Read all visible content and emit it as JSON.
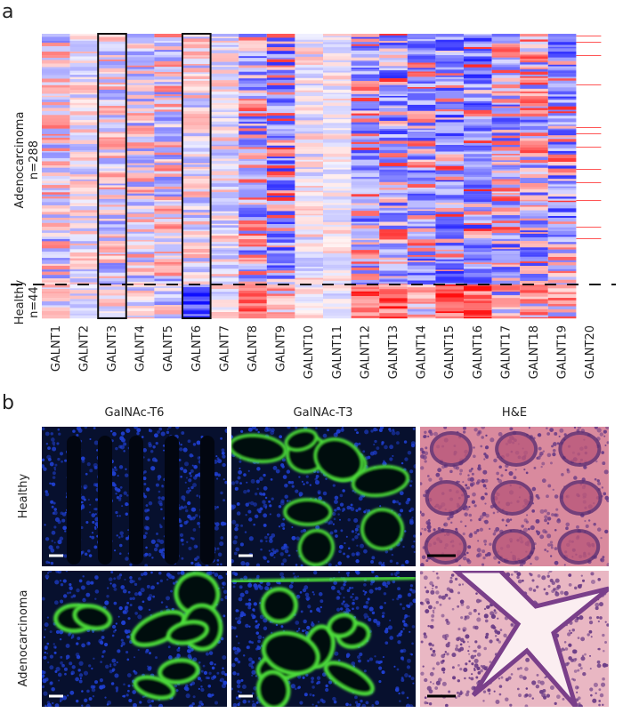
{
  "panel_a": {
    "label": "a",
    "row_labels": [
      {
        "group": "Adenocarcinoma",
        "n": "n=288"
      },
      {
        "group": "Healthy",
        "n": "n=44"
      }
    ],
    "columns": [
      "GALNT1",
      "GALNT2",
      "GALNT3",
      "GALNT4",
      "GALNT5",
      "GALNT6",
      "GALNT7",
      "GALNT8",
      "GALNT9",
      "GALNT10",
      "GALNT11",
      "GALNT12",
      "GALNT13",
      "GALNT14",
      "GALNT15",
      "GALNT16",
      "GALNT17",
      "GALNT18",
      "GALNT19",
      "GALNT20"
    ]
  },
  "panel_b": {
    "label": "b",
    "column_titles": [
      "GalNAc-T6",
      "GalNAc-T3",
      "H&E"
    ],
    "row_labels": [
      "Healthy",
      "Adenocarcinoma"
    ]
  }
}
